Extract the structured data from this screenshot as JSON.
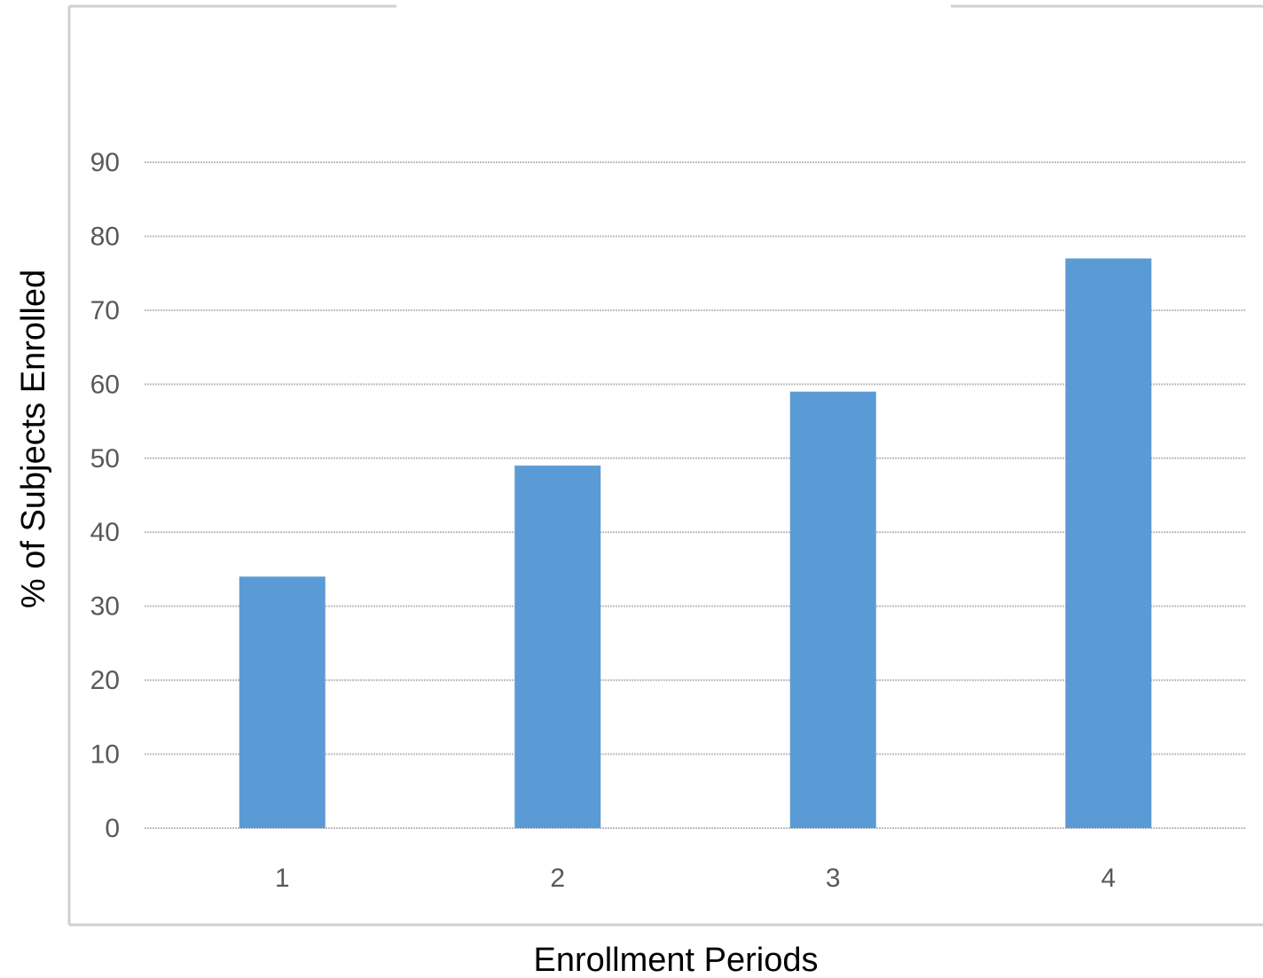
{
  "chart_data": {
    "type": "bar",
    "title": "",
    "xlabel": "Enrollment Periods",
    "ylabel": "% of Subjects Enrolled",
    "categories": [
      "1",
      "2",
      "3",
      "4"
    ],
    "values": [
      34,
      49,
      59,
      77
    ],
    "ylim": [
      0,
      90
    ],
    "yticks": [
      "0",
      "10",
      "20",
      "30",
      "40",
      "50",
      "60",
      "70",
      "80",
      "90"
    ],
    "grid": true,
    "legend": "none",
    "bar_color": "#5b9bd5"
  }
}
